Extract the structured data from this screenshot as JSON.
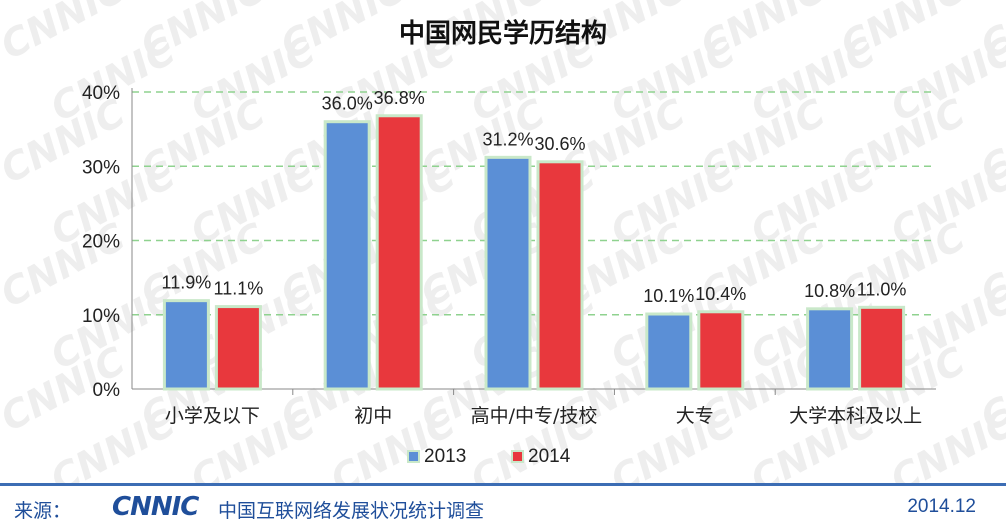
{
  "footer": {
    "source_label": "来源：",
    "logo_text": "CNNIC",
    "survey_name": "中国互联网络发展状况统计调查",
    "date": "2014.12"
  },
  "watermark_text": "CNNIC",
  "colors": {
    "series_2013": "#5b8fd6",
    "series_2014": "#e8383d",
    "grid": "#8fd28f",
    "bar_border": "#c9e8c9",
    "footer": "#1f4e9a"
  },
  "chart_data": {
    "type": "bar",
    "title": "中国网民学历结构",
    "categories": [
      "小学及以下",
      "初中",
      "高中/中专/技校",
      "大专",
      "大学本科及以上"
    ],
    "series": [
      {
        "name": "2013",
        "values": [
          11.9,
          36.0,
          31.2,
          10.1,
          10.8
        ],
        "labels": [
          "11.9%",
          "36.0%",
          "31.2%",
          "10.1%",
          "10.8%"
        ]
      },
      {
        "name": "2014",
        "values": [
          11.1,
          36.8,
          30.6,
          10.4,
          11.0
        ],
        "labels": [
          "11.1%",
          "36.8%",
          "30.6%",
          "10.4%",
          "11.0%"
        ]
      }
    ],
    "yticks": [
      "0%",
      "10%",
      "20%",
      "30%",
      "40%"
    ],
    "ylim": [
      0,
      40
    ],
    "grid": true,
    "legend_position": "bottom-center"
  }
}
